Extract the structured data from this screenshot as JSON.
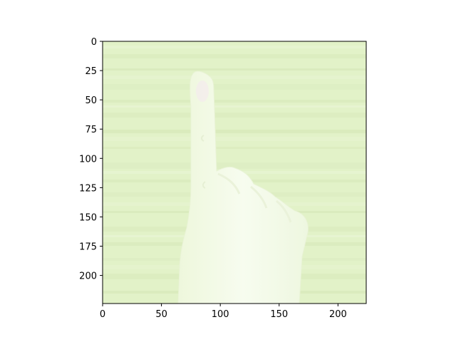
{
  "image": {
    "subject": "hand-icon",
    "background_color": "#e2f2c8",
    "hand_color": "#f5fbe9",
    "xlim": [
      0,
      224
    ],
    "ylim": [
      224,
      0
    ],
    "x_ticks": [
      0,
      50,
      100,
      150,
      200
    ],
    "y_ticks": [
      0,
      25,
      50,
      75,
      100,
      125,
      150,
      175,
      200
    ]
  }
}
